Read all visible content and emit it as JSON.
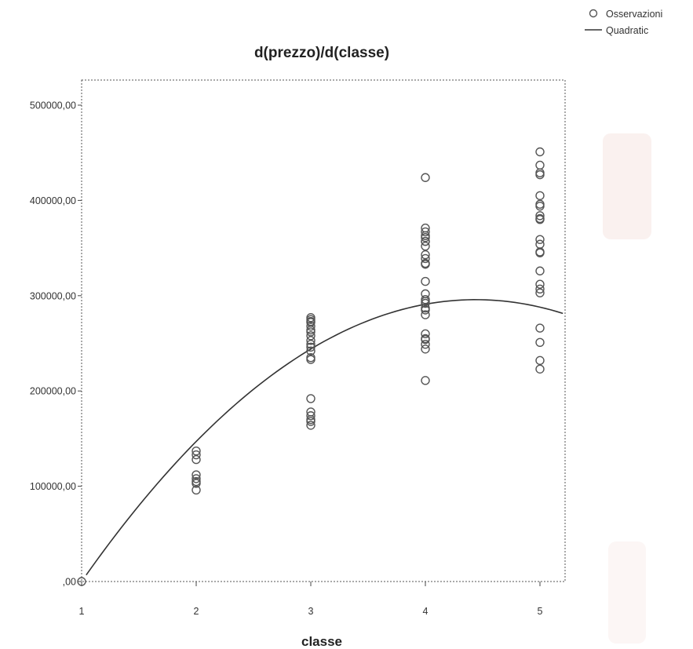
{
  "chart_data": {
    "type": "scatter",
    "title": "d(prezzo)/d(classe)",
    "xlabel": "classe",
    "ylabel": "",
    "xlim": [
      1,
      5.2
    ],
    "ylim": [
      0,
      525000
    ],
    "x_ticks": [
      1,
      2,
      3,
      4,
      5
    ],
    "x_tick_labels": [
      "1",
      "2",
      "3",
      "4",
      "5"
    ],
    "y_ticks": [
      0,
      100000,
      200000,
      300000,
      400000,
      500000
    ],
    "y_tick_labels": [
      ",00",
      "100000,00",
      "200000,00",
      "300000,00",
      "400000,00",
      "500000,00"
    ],
    "legend_position": "top-right",
    "series": [
      {
        "name": "Osservazioni",
        "kind": "points",
        "x": [
          1,
          2,
          2,
          2,
          2,
          2,
          2,
          2,
          2,
          3,
          3,
          3,
          3,
          3,
          3,
          3,
          3,
          3,
          3,
          3,
          3,
          3,
          3,
          3,
          3,
          3,
          3,
          3,
          3,
          4,
          4,
          4,
          4,
          4,
          4,
          4,
          4,
          4,
          4,
          4,
          4,
          4,
          4,
          4,
          4,
          4,
          4,
          4,
          4,
          4,
          4,
          4,
          4,
          4,
          4,
          5,
          5,
          5,
          5,
          5,
          5,
          5,
          5,
          5,
          5,
          5,
          5,
          5,
          5,
          5,
          5,
          5,
          5,
          5,
          5,
          5,
          5
        ],
        "y": [
          0,
          137000,
          133000,
          128000,
          112000,
          108000,
          105000,
          103000,
          96000,
          277000,
          273000,
          268000,
          264000,
          258000,
          253000,
          249000,
          246000,
          235000,
          233000,
          192000,
          178000,
          174000,
          170000,
          168000,
          164000,
          275000,
          262000,
          272000,
          242000,
          424000,
          371000,
          367000,
          363000,
          357000,
          352000,
          343000,
          339000,
          334000,
          315000,
          302000,
          296000,
          294000,
          287000,
          280000,
          260000,
          254000,
          249000,
          244000,
          211000,
          361000,
          333000,
          292000,
          285000,
          255000,
          357000,
          451000,
          437000,
          429000,
          427000,
          405000,
          396000,
          394000,
          384000,
          381000,
          359000,
          354000,
          345000,
          326000,
          312000,
          307000,
          303000,
          266000,
          251000,
          232000,
          223000,
          380000,
          346000
        ]
      },
      {
        "name": "Quadratic",
        "kind": "fit",
        "coefficients": {
          "a": -197000,
          "b": 222000,
          "c": -25000
        },
        "x_from": 1.04,
        "x_to": 5.2
      }
    ]
  }
}
